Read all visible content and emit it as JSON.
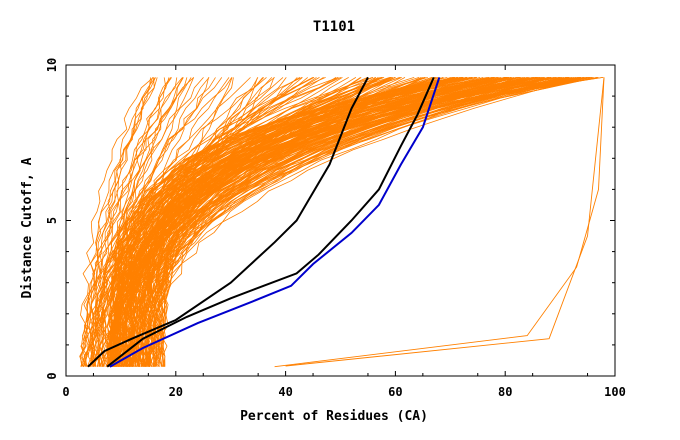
{
  "chart_data": {
    "type": "line",
    "title": "T1101",
    "xlabel": "Percent of Residues (CA)",
    "ylabel": "Distance Cutoff, A",
    "xlim": [
      0,
      100
    ],
    "ylim": [
      0,
      10
    ],
    "x_ticks": [
      0,
      20,
      40,
      60,
      80,
      100
    ],
    "y_ticks": [
      0,
      5,
      10
    ],
    "grid": false,
    "legend": "none",
    "colors": {
      "models": "#ff8000",
      "highlight_black": "#000000",
      "highlight_blue": "#0000cc"
    },
    "series": [
      {
        "color": "#000000",
        "x": [
          4,
          7,
          12,
          20,
          30,
          38,
          42,
          44,
          48,
          52,
          55
        ],
        "y": [
          0.3,
          0.8,
          1.2,
          1.8,
          3.0,
          4.3,
          5.0,
          5.6,
          6.8,
          8.6,
          9.6
        ]
      },
      {
        "color": "#000000",
        "x": [
          7.5,
          14,
          22,
          30,
          36,
          42,
          46,
          52,
          57,
          61,
          64,
          67
        ],
        "y": [
          0.3,
          1.2,
          1.9,
          2.5,
          2.9,
          3.3,
          3.9,
          5.0,
          6.0,
          7.4,
          8.4,
          9.6
        ]
      },
      {
        "color": "#0000cc",
        "x": [
          8,
          14,
          24,
          34,
          41,
          45,
          52,
          57,
          61,
          65,
          68
        ],
        "y": [
          0.3,
          0.9,
          1.7,
          2.4,
          2.9,
          3.6,
          4.6,
          5.5,
          6.8,
          8.0,
          9.6
        ]
      }
    ]
  }
}
